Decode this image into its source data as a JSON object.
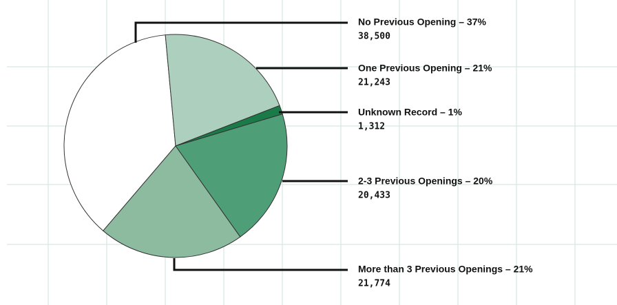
{
  "chart_data": {
    "type": "pie",
    "categories": [
      "No Previous Opening – 37%",
      "One Previous Opening – 21%",
      "Unknown Record – 1%",
      "2-3 Previous Openings – 20%",
      "More than 3 Previous Openings – 21%"
    ],
    "values": [
      38500,
      21243,
      1312,
      20433,
      21774
    ],
    "value_labels": [
      "38,500",
      "21,243",
      "1,312",
      "20,433",
      "21,774"
    ],
    "colors": [
      "#ffffff",
      "#acd0bd",
      "#1a7a48",
      "#4e9e78",
      "#8cbba0"
    ]
  }
}
